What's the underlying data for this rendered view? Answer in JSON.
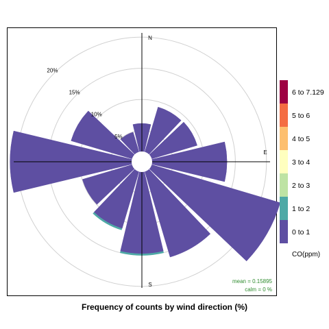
{
  "chart_data": {
    "type": "windrose",
    "title": "Frequency of counts by wind direction (%)",
    "directions": [
      "N",
      "E",
      "S"
    ],
    "radial_ticks": [
      5,
      10,
      15,
      20
    ],
    "radial_tick_labels": [
      "5%",
      "10%",
      "15%",
      "20%"
    ],
    "rmax": 22,
    "sectors": [
      {
        "angle": 0,
        "value": 4.5,
        "top": 0
      },
      {
        "angle": 30,
        "value": 7.5,
        "top": 0
      },
      {
        "angle": 60,
        "value": 7.6,
        "top": 0
      },
      {
        "angle": 90,
        "value": 12.0,
        "top": 0
      },
      {
        "angle": 120,
        "value": 21.5,
        "top": 0
      },
      {
        "angle": 150,
        "value": 14.3,
        "top": 0
      },
      {
        "angle": 180,
        "value": 13.4,
        "top": 0.3
      },
      {
        "angle": 210,
        "value": 9.8,
        "top": 0.3
      },
      {
        "angle": 240,
        "value": 8.3,
        "top": 0
      },
      {
        "angle": 270,
        "value": 19.5,
        "top": 0
      },
      {
        "angle": 300,
        "value": 10.2,
        "top": 0
      },
      {
        "angle": 330,
        "value": 3.3,
        "top": 0
      }
    ],
    "legend": {
      "title": "CO(ppm)",
      "items": [
        {
          "label": "6 to 7.129",
          "color": "#9E0142"
        },
        {
          "label": "5 to 6",
          "color": "#F46D43"
        },
        {
          "label": "4 to 5",
          "color": "#FDBF6F"
        },
        {
          "label": "3 to 4",
          "color": "#FFFFBF"
        },
        {
          "label": "2 to 3",
          "color": "#BEE3A4"
        },
        {
          "label": "1 to 2",
          "color": "#4EA9A6"
        },
        {
          "label": "0 to 1",
          "color": "#5E4FA2"
        }
      ]
    },
    "stats": {
      "mean": "mean =  0.15895",
      "calm": "calm =  0 %"
    }
  }
}
